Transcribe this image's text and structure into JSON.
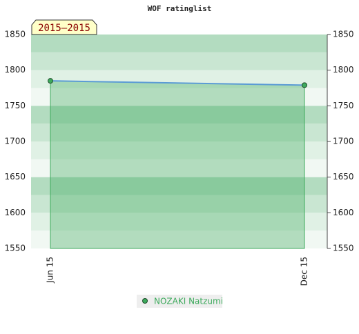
{
  "chart_data": {
    "type": "area",
    "title": "WOF ratinglist",
    "period_label": "2015–2015",
    "categories": [
      "Jun 15",
      "Dec 15"
    ],
    "series": [
      {
        "name": "NOZAKI Natzumi",
        "color": "#3daa5c",
        "line_color": "#5b9bd5",
        "values": [
          1785,
          1779
        ]
      }
    ],
    "ylim": [
      1550,
      1850
    ],
    "yticks": [
      1550,
      1600,
      1650,
      1700,
      1750,
      1800,
      1850
    ],
    "legend": "bottom"
  }
}
